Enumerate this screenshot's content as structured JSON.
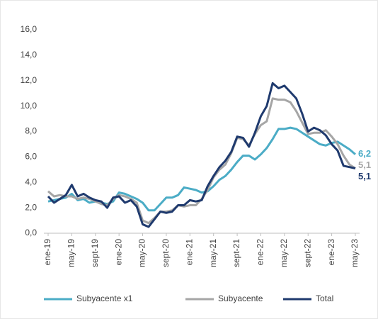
{
  "chart_data": {
    "type": "line",
    "categories": [
      "ene-19",
      null,
      null,
      null,
      "may-19",
      null,
      null,
      null,
      "sept-19",
      null,
      null,
      null,
      "ene-20",
      null,
      null,
      null,
      "may-20",
      null,
      null,
      null,
      "sept-20",
      null,
      null,
      null,
      "ene-21",
      null,
      null,
      null,
      "may-21",
      null,
      null,
      null,
      "sept-21",
      null,
      null,
      null,
      "ene-22",
      null,
      null,
      null,
      "may-22",
      null,
      null,
      null,
      "sept-22",
      null,
      null,
      null,
      "ene-23",
      null,
      null,
      null,
      "may-23"
    ],
    "series": [
      {
        "name": "Subyacente x1",
        "color": "#4bacc6",
        "values": [
          2.5,
          2.6,
          2.7,
          2.8,
          3.1,
          2.6,
          2.7,
          2.4,
          2.5,
          2.4,
          2.3,
          2.5,
          3.2,
          3.1,
          2.9,
          2.7,
          2.4,
          1.8,
          1.8,
          2.3,
          2.8,
          2.8,
          3.0,
          3.6,
          3.5,
          3.4,
          3.2,
          3.3,
          3.7,
          4.2,
          4.5,
          5.0,
          5.6,
          6.1,
          6.1,
          5.8,
          6.2,
          6.7,
          7.4,
          8.2,
          8.2,
          8.3,
          8.2,
          7.9,
          7.6,
          7.3,
          7.0,
          6.9,
          7.1,
          7.2,
          6.9,
          6.6,
          6.2
        ],
        "value_labels": [
          null,
          null,
          null,
          null,
          null,
          null,
          null,
          null,
          null,
          null,
          null,
          null,
          null,
          null,
          null,
          null,
          null,
          null,
          null,
          null,
          null,
          null,
          null,
          null,
          null,
          null,
          null,
          null,
          null,
          null,
          null,
          null,
          null,
          null,
          null,
          null,
          null,
          null,
          null,
          null,
          null,
          null,
          null,
          null,
          null,
          null,
          null,
          null,
          null,
          null,
          null,
          null,
          "6,2"
        ]
      },
      {
        "name": "Subyacente",
        "color": "#a6a6a6",
        "values": [
          3.3,
          2.9,
          3.0,
          2.9,
          2.9,
          2.7,
          2.8,
          2.7,
          2.5,
          2.3,
          2.2,
          2.7,
          3.0,
          2.9,
          2.7,
          2.4,
          1.0,
          0.8,
          1.2,
          1.7,
          1.7,
          1.8,
          2.2,
          2.1,
          2.2,
          2.2,
          2.7,
          3.4,
          4.4,
          5.0,
          5.4,
          6.3,
          7.5,
          7.4,
          6.9,
          7.8,
          8.5,
          8.8,
          10.6,
          10.5,
          10.5,
          10.3,
          9.6,
          8.7,
          7.8,
          7.9,
          7.9,
          8.1,
          7.6,
          7.0,
          6.1,
          5.4,
          5.1
        ],
        "value_labels": [
          null,
          null,
          null,
          null,
          null,
          null,
          null,
          null,
          null,
          null,
          null,
          null,
          null,
          null,
          null,
          null,
          null,
          null,
          null,
          null,
          null,
          null,
          null,
          null,
          null,
          null,
          null,
          null,
          null,
          null,
          null,
          null,
          null,
          null,
          null,
          null,
          null,
          null,
          null,
          null,
          null,
          null,
          null,
          null,
          null,
          null,
          null,
          null,
          null,
          null,
          null,
          null,
          "5,1"
        ]
      },
      {
        "name": "Total",
        "color": "#1f3a6e",
        "values": [
          2.9,
          2.4,
          2.7,
          3.0,
          3.8,
          2.9,
          3.1,
          2.8,
          2.6,
          2.5,
          2.0,
          2.8,
          2.9,
          2.4,
          2.6,
          2.1,
          0.7,
          0.5,
          1.1,
          1.7,
          1.6,
          1.7,
          2.2,
          2.2,
          2.6,
          2.5,
          2.6,
          3.7,
          4.5,
          5.2,
          5.7,
          6.4,
          7.6,
          7.5,
          6.8,
          7.9,
          9.2,
          10.0,
          11.8,
          11.4,
          11.6,
          11.1,
          10.6,
          9.4,
          8.0,
          8.3,
          8.1,
          7.7,
          7.0,
          6.5,
          5.3,
          5.2,
          5.1
        ],
        "value_labels": [
          null,
          null,
          null,
          null,
          null,
          null,
          null,
          null,
          null,
          null,
          null,
          null,
          null,
          null,
          null,
          null,
          null,
          null,
          null,
          null,
          null,
          null,
          null,
          null,
          null,
          null,
          null,
          null,
          null,
          null,
          null,
          null,
          null,
          null,
          null,
          null,
          null,
          null,
          null,
          null,
          null,
          null,
          null,
          null,
          null,
          null,
          null,
          null,
          null,
          null,
          null,
          null,
          "5,1"
        ]
      }
    ],
    "ylim": [
      0,
      16
    ],
    "yticks": [
      {
        "value": 0,
        "label": "0,0"
      },
      {
        "value": 2,
        "label": "2,0"
      },
      {
        "value": 4,
        "label": "4,0"
      },
      {
        "value": 6,
        "label": "6,0"
      },
      {
        "value": 8,
        "label": "8,0"
      },
      {
        "value": 10,
        "label": "10,0"
      },
      {
        "value": 12,
        "label": "12,0"
      },
      {
        "value": 14,
        "label": "14,0"
      },
      {
        "value": 16,
        "label": "16,0"
      }
    ],
    "grid": false,
    "legend": "bottom"
  }
}
